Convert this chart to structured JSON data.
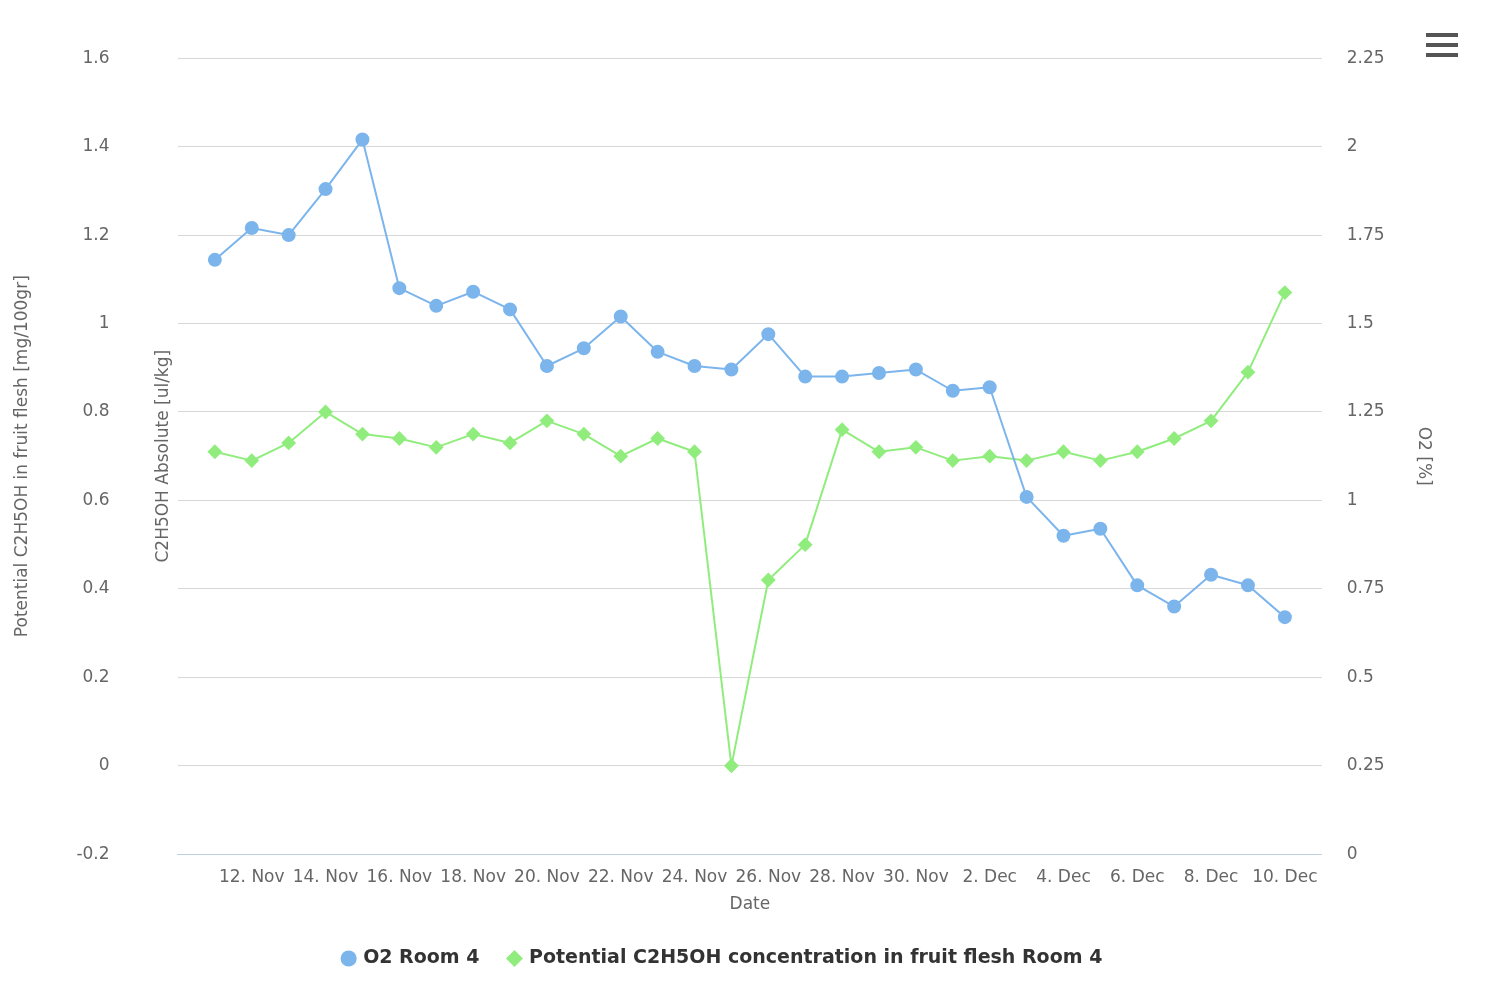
{
  "chart_data": {
    "type": "line",
    "xlabel": "Date",
    "ylabel": "Potential C2H5OH in fruit flesh [mg/100gr]",
    "y3label": "C2H5OH Absolute [ul/kg]",
    "y2label": "O2 [%]",
    "x": [
      "--11-11",
      "--11-12",
      "--11-13",
      "--11-14",
      "--11-15",
      "--11-16",
      "--11-17",
      "--11-18",
      "--11-19",
      "--11-20",
      "--11-21",
      "--11-22",
      "--11-23",
      "--11-24",
      "--11-25",
      "--11-26",
      "--11-27",
      "--11-28",
      "--11-29",
      "--11-30",
      "--12-01",
      "--12-02",
      "--12-03",
      "--12-04",
      "--12-05",
      "--12-06",
      "--12-07",
      "--12-08",
      "--12-09",
      "--12-10"
    ],
    "xlim": [
      "--11-10",
      "--12-11"
    ],
    "xticks": [
      {
        "value": "--11-12",
        "label": "12. Nov"
      },
      {
        "value": "--11-14",
        "label": "14. Nov"
      },
      {
        "value": "--11-16",
        "label": "16. Nov"
      },
      {
        "value": "--11-18",
        "label": "18. Nov"
      },
      {
        "value": "--11-20",
        "label": "20. Nov"
      },
      {
        "value": "--11-22",
        "label": "22. Nov"
      },
      {
        "value": "--11-24",
        "label": "24. Nov"
      },
      {
        "value": "--11-26",
        "label": "26. Nov"
      },
      {
        "value": "--11-28",
        "label": "28. Nov"
      },
      {
        "value": "--11-30",
        "label": "30. Nov"
      },
      {
        "value": "--12-02",
        "label": "2. Dec"
      },
      {
        "value": "--12-04",
        "label": "4. Dec"
      },
      {
        "value": "--12-06",
        "label": "6. Dec"
      },
      {
        "value": "--12-08",
        "label": "8. Dec"
      },
      {
        "value": "--12-10",
        "label": "10. Dec"
      }
    ],
    "ylim": [
      -0.2,
      1.6
    ],
    "yticks": [
      -0.2,
      0,
      0.2,
      0.4,
      0.6,
      0.8,
      1,
      1.2,
      1.4,
      1.6
    ],
    "y2lim": [
      0,
      2.25
    ],
    "y2ticks": [
      0,
      0.25,
      0.5,
      0.75,
      1,
      1.25,
      1.5,
      1.75,
      2,
      2.25
    ],
    "grid": "y",
    "legend": "bottom",
    "line_style": "solid",
    "series": [
      {
        "name": "O2 Room 4",
        "color": "#7cb5ec",
        "axis": "y2",
        "marker": "circle",
        "values": [
          1.68,
          1.77,
          1.75,
          1.88,
          2.02,
          1.6,
          1.55,
          1.59,
          1.54,
          1.38,
          1.43,
          1.52,
          1.42,
          1.38,
          1.37,
          1.47,
          1.35,
          1.35,
          1.36,
          1.37,
          1.31,
          1.32,
          1.01,
          0.9,
          0.92,
          0.76,
          0.7,
          0.79,
          0.76,
          0.67
        ]
      },
      {
        "name": "Potential C2H5OH concentration in fruit flesh Room 4",
        "color": "#90ed7d",
        "marker": "diamond",
        "values": [
          0.71,
          0.69,
          0.73,
          0.8,
          0.75,
          0.74,
          0.72,
          0.75,
          0.73,
          0.78,
          0.75,
          0.7,
          0.74,
          0.71,
          0,
          0.42,
          0.5,
          0.76,
          0.71,
          0.72,
          0.69,
          0.7,
          0.69,
          0.71,
          0.69,
          0.71,
          0.74,
          0.78,
          0.89,
          1.07
        ]
      }
    ]
  }
}
